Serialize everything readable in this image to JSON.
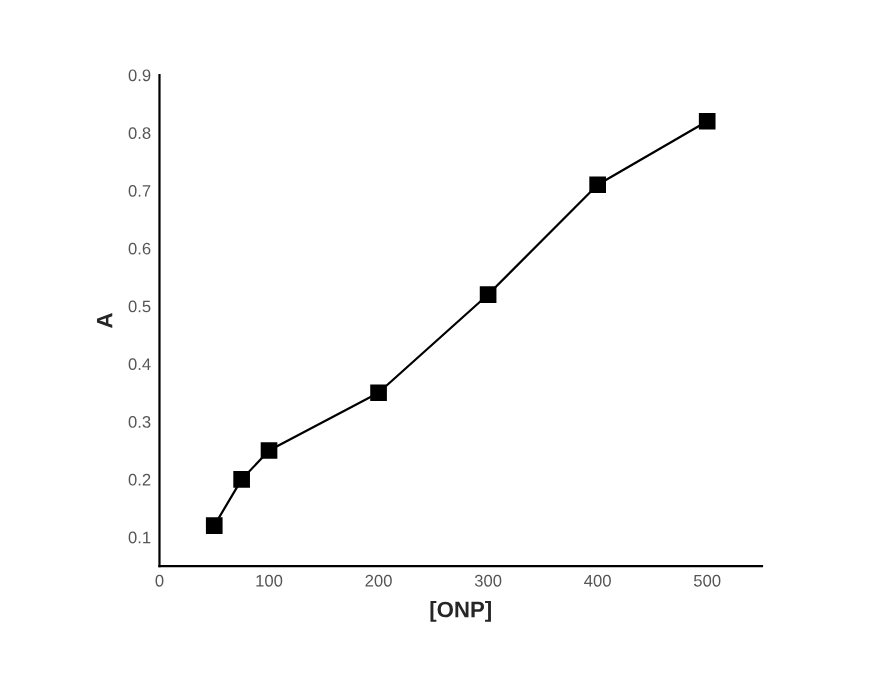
{
  "chart_data": {
    "type": "line",
    "xlabel": "[ONP]",
    "ylabel": "A",
    "x": [
      50,
      75,
      100,
      200,
      300,
      400,
      500
    ],
    "series": [
      {
        "color": "#000000",
        "values": [
          0.12,
          0.2,
          0.25,
          0.35,
          0.52,
          0.71,
          0.82
        ]
      }
    ],
    "xlim": [
      0,
      550
    ],
    "xticks": [
      0,
      100,
      200,
      300,
      400,
      500
    ],
    "ylim": [
      0.05,
      0.9
    ],
    "yticks": [
      0.1,
      0.2,
      0.3,
      0.4,
      0.5,
      0.6,
      0.7,
      0.8,
      0.9
    ],
    "marker": "square",
    "line_style": "solid",
    "grid": false,
    "legend": false
  }
}
